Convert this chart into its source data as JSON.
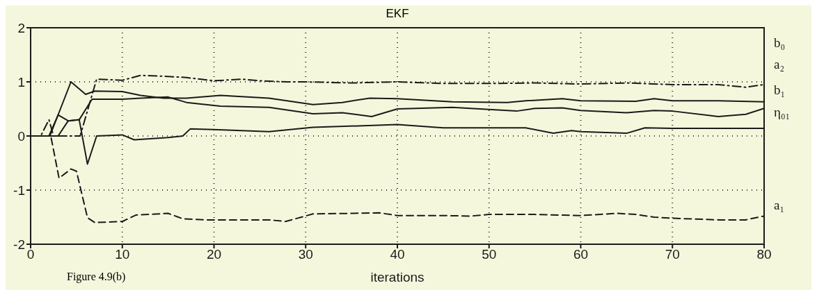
{
  "chart_data": {
    "type": "line",
    "title": "EKF",
    "xlabel": "iterations",
    "annotations": [
      "Figure 4.9(b)"
    ],
    "xlim": [
      0,
      80
    ],
    "xticks": [
      0,
      10,
      20,
      30,
      40,
      50,
      60,
      70,
      80
    ],
    "ylim": [
      -2,
      2
    ],
    "yticks": [
      -2,
      -1,
      0,
      1,
      2
    ],
    "grid": true,
    "marker": "none",
    "series": [
      {
        "name": "b₀",
        "color": "#1a1a1a",
        "line_style": "dashdot",
        "x": [
          0,
          1.1,
          2,
          2.5,
          5.4,
          7.2,
          10,
          12,
          15,
          17,
          20,
          23,
          25,
          28,
          30,
          35,
          40,
          45,
          50,
          55,
          60,
          65,
          70,
          75,
          78,
          80
        ],
        "values": [
          0,
          0,
          0.3,
          0,
          0,
          1.05,
          1.03,
          1.12,
          1.1,
          1.08,
          1.02,
          1.05,
          1.02,
          1.0,
          1.0,
          0.98,
          1.0,
          0.97,
          0.97,
          0.98,
          0.96,
          0.98,
          0.95,
          0.95,
          0.9,
          0.95
        ]
      },
      {
        "name": "a₂",
        "color": "#1a1a1a",
        "line_style": "solid",
        "x": [
          0,
          2.1,
          4.4,
          6,
          7,
          10,
          12,
          14.5,
          17,
          20.7,
          26,
          30.8,
          34,
          37,
          40,
          46,
          52,
          54,
          58,
          60,
          66,
          68,
          70,
          75,
          80
        ],
        "values": [
          0,
          0,
          1.0,
          0.77,
          0.83,
          0.82,
          0.75,
          0.7,
          0.7,
          0.75,
          0.7,
          0.58,
          0.62,
          0.7,
          0.69,
          0.63,
          0.62,
          0.65,
          0.69,
          0.65,
          0.64,
          0.69,
          0.65,
          0.65,
          0.63
        ]
      },
      {
        "name": "b₁",
        "color": "#1a1a1a",
        "line_style": "solid",
        "x": [
          0,
          3,
          4.1,
          5.3,
          6.7,
          10,
          12,
          15,
          17,
          20.7,
          26,
          30.8,
          34,
          37.2,
          40,
          46,
          53,
          55,
          58,
          60,
          65,
          68,
          70,
          75,
          78,
          80
        ],
        "values": [
          0,
          0,
          0.28,
          0.3,
          0.68,
          0.68,
          0.7,
          0.72,
          0.62,
          0.55,
          0.53,
          0.41,
          0.43,
          0.36,
          0.5,
          0.53,
          0.46,
          0.51,
          0.52,
          0.47,
          0.43,
          0.47,
          0.46,
          0.36,
          0.4,
          0.51
        ]
      },
      {
        "name": "η₀₁",
        "color": "#1a1a1a",
        "line_style": "solid",
        "x": [
          0,
          2,
          3,
          4.1,
          5.3,
          6.2,
          7.2,
          10,
          11.3,
          15,
          16.6,
          17.4,
          20,
          26,
          30.8,
          40,
          45,
          50,
          54,
          57,
          59,
          60,
          65,
          67,
          70,
          80
        ],
        "values": [
          0,
          0,
          0.39,
          0.28,
          0.3,
          -0.52,
          0,
          0.02,
          -0.07,
          -0.03,
          0,
          0.13,
          0.12,
          0.08,
          0.16,
          0.21,
          0.15,
          0.15,
          0.15,
          0.05,
          0.1,
          0.08,
          0.05,
          0.15,
          0.14,
          0.14
        ]
      },
      {
        "name": "a₁",
        "color": "#1a1a1a",
        "line_style": "dashed",
        "x": [
          0,
          2.2,
          3.1,
          4.4,
          5,
          6.2,
          7,
          10,
          11.5,
          15,
          16.6,
          19,
          26,
          27.8,
          30.8,
          35,
          38,
          40,
          45,
          48,
          50,
          55,
          60,
          64,
          66,
          68,
          70,
          75,
          78,
          80
        ],
        "values": [
          0,
          0,
          -0.78,
          -0.61,
          -0.65,
          -1.51,
          -1.6,
          -1.58,
          -1.46,
          -1.43,
          -1.53,
          -1.55,
          -1.55,
          -1.58,
          -1.44,
          -1.43,
          -1.42,
          -1.47,
          -1.47,
          -1.48,
          -1.45,
          -1.45,
          -1.47,
          -1.43,
          -1.45,
          -1.5,
          -1.52,
          -1.55,
          -1.55,
          -1.48
        ]
      }
    ]
  }
}
